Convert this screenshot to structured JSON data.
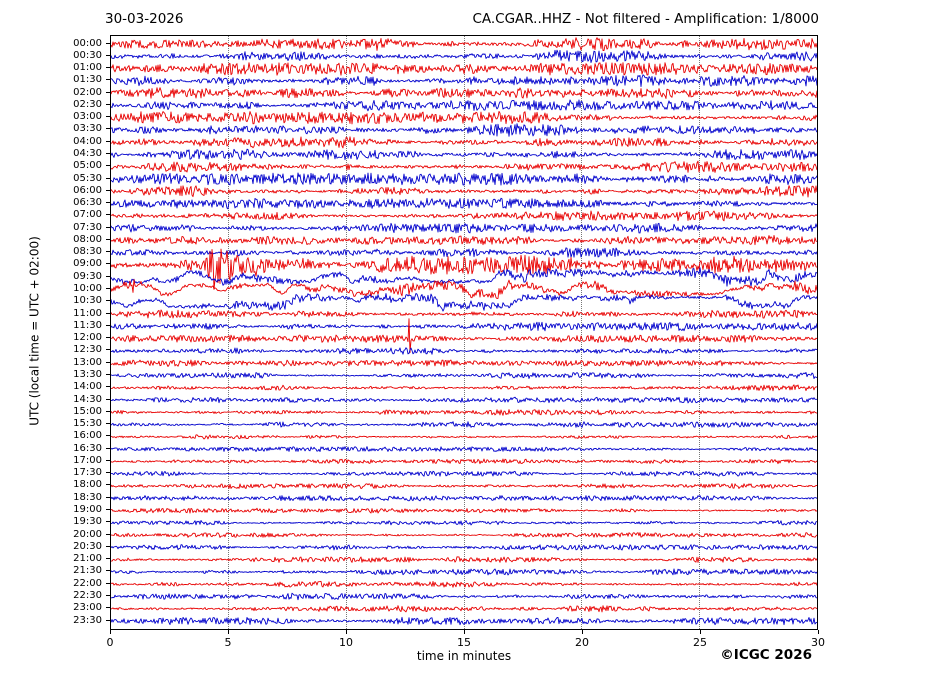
{
  "page": {
    "copyright": "©ICGC 2026"
  },
  "chart_data": {
    "type": "line",
    "subtype": "helicorder-seismogram",
    "date": "30-03-2026",
    "title": "CA.CGAR..HHZ - Not filtered - Amplification: 1/8000",
    "xlabel": "time in minutes",
    "ylabel": "UTC (local time = UTC + 02:00)",
    "xlim": [
      0,
      30
    ],
    "xticks": [
      0,
      5,
      10,
      15,
      20,
      25,
      30
    ],
    "grid_x_minutes": [
      5,
      10,
      15,
      20,
      25
    ],
    "grid_style": "dotted-vertical",
    "row_interval_minutes": 30,
    "trace_colors": {
      "hour_rows": "#e80000",
      "half_hour_rows": "#0000cc"
    },
    "rows": [
      {
        "label": "00:00",
        "color": "red",
        "amp": 3.2
      },
      {
        "label": "00:30",
        "color": "blue",
        "amp": 3.0
      },
      {
        "label": "01:00",
        "color": "red",
        "amp": 3.3
      },
      {
        "label": "01:30",
        "color": "blue",
        "amp": 3.0
      },
      {
        "label": "02:00",
        "color": "red",
        "amp": 2.8
      },
      {
        "label": "02:30",
        "color": "blue",
        "amp": 2.6
      },
      {
        "label": "03:00",
        "color": "red",
        "amp": 3.0
      },
      {
        "label": "03:30",
        "color": "blue",
        "amp": 3.1
      },
      {
        "label": "04:00",
        "color": "red",
        "amp": 2.7
      },
      {
        "label": "04:30",
        "color": "blue",
        "amp": 2.6
      },
      {
        "label": "05:00",
        "color": "red",
        "amp": 2.7
      },
      {
        "label": "05:30",
        "color": "blue",
        "amp": 3.0
      },
      {
        "label": "06:00",
        "color": "red",
        "amp": 2.8
      },
      {
        "label": "06:30",
        "color": "blue",
        "amp": 2.6
      },
      {
        "label": "07:00",
        "color": "red",
        "amp": 2.5
      },
      {
        "label": "07:30",
        "color": "blue",
        "amp": 2.4
      },
      {
        "label": "08:00",
        "color": "red",
        "amp": 2.4
      },
      {
        "label": "08:30",
        "color": "blue",
        "amp": 2.6
      },
      {
        "label": "09:00",
        "color": "red",
        "amp": 3.0,
        "sustain": 1.6,
        "events": [
          {
            "type": "burst",
            "start": 3.8,
            "peak": 4.4,
            "end": 8.5,
            "amp": 24
          }
        ]
      },
      {
        "label": "09:30",
        "color": "blue",
        "amp": 2.8,
        "wander": true
      },
      {
        "label": "10:00",
        "color": "red",
        "amp": 2.8,
        "wander": true,
        "events": [
          {
            "type": "burst",
            "start": 0.5,
            "peak": 0.8,
            "end": 1.8,
            "amp": 9
          }
        ]
      },
      {
        "label": "10:30",
        "color": "blue",
        "amp": 2.5,
        "wander": true
      },
      {
        "label": "11:00",
        "color": "red",
        "amp": 2.2
      },
      {
        "label": "11:30",
        "color": "blue",
        "amp": 2.1
      },
      {
        "label": "12:00",
        "color": "red",
        "amp": 1.8,
        "events": [
          {
            "type": "spike",
            "t": 12.65,
            "amp_up": 20,
            "amp_down": 14
          }
        ]
      },
      {
        "label": "12:30",
        "color": "blue",
        "amp": 1.7
      },
      {
        "label": "13:00",
        "color": "red",
        "amp": 1.6
      },
      {
        "label": "13:30",
        "color": "blue",
        "amp": 1.5
      },
      {
        "label": "14:00",
        "color": "red",
        "amp": 1.5
      },
      {
        "label": "14:30",
        "color": "blue",
        "amp": 1.4
      },
      {
        "label": "15:00",
        "color": "red",
        "amp": 1.5
      },
      {
        "label": "15:30",
        "color": "blue",
        "amp": 1.4
      },
      {
        "label": "16:00",
        "color": "red",
        "amp": 1.4
      },
      {
        "label": "16:30",
        "color": "blue",
        "amp": 1.2
      },
      {
        "label": "17:00",
        "color": "red",
        "amp": 1.2
      },
      {
        "label": "17:30",
        "color": "blue",
        "amp": 1.2
      },
      {
        "label": "18:00",
        "color": "red",
        "amp": 1.3
      },
      {
        "label": "18:30",
        "color": "blue",
        "amp": 1.3
      },
      {
        "label": "19:00",
        "color": "red",
        "amp": 1.2
      },
      {
        "label": "19:30",
        "color": "blue",
        "amp": 1.2
      },
      {
        "label": "20:00",
        "color": "red",
        "amp": 1.2
      },
      {
        "label": "20:30",
        "color": "blue",
        "amp": 1.3
      },
      {
        "label": "21:00",
        "color": "red",
        "amp": 1.4
      },
      {
        "label": "21:30",
        "color": "blue",
        "amp": 1.5
      },
      {
        "label": "22:00",
        "color": "red",
        "amp": 1.5
      },
      {
        "label": "22:30",
        "color": "blue",
        "amp": 1.6
      },
      {
        "label": "23:00",
        "color": "red",
        "amp": 1.6
      },
      {
        "label": "23:30",
        "color": "blue",
        "amp": 1.8
      }
    ]
  }
}
